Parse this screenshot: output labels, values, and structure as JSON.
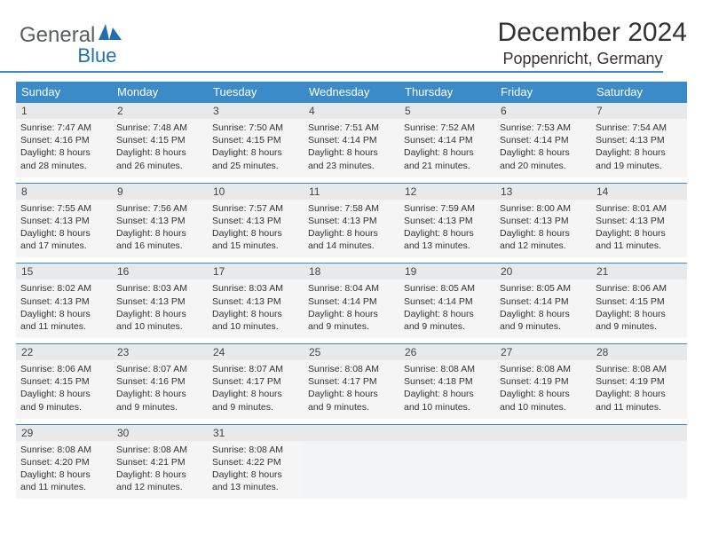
{
  "logo": {
    "text1": "General",
    "text2": "Blue"
  },
  "title": "December 2024",
  "location": "Poppenricht, Germany",
  "colors": {
    "header_bg": "#3b8bc9",
    "header_text": "#ffffff",
    "daynum_bg": "#e8e9ea",
    "cell_bg": "#f5f5f5",
    "border": "#3b8bc9",
    "logo_gray": "#5a5d60",
    "logo_blue": "#1f6fb2"
  },
  "weekdays": [
    "Sunday",
    "Monday",
    "Tuesday",
    "Wednesday",
    "Thursday",
    "Friday",
    "Saturday"
  ],
  "weeks": [
    {
      "days": [
        {
          "num": "1",
          "sunrise": "Sunrise: 7:47 AM",
          "sunset": "Sunset: 4:16 PM",
          "daylight": "Daylight: 8 hours and 28 minutes."
        },
        {
          "num": "2",
          "sunrise": "Sunrise: 7:48 AM",
          "sunset": "Sunset: 4:15 PM",
          "daylight": "Daylight: 8 hours and 26 minutes."
        },
        {
          "num": "3",
          "sunrise": "Sunrise: 7:50 AM",
          "sunset": "Sunset: 4:15 PM",
          "daylight": "Daylight: 8 hours and 25 minutes."
        },
        {
          "num": "4",
          "sunrise": "Sunrise: 7:51 AM",
          "sunset": "Sunset: 4:14 PM",
          "daylight": "Daylight: 8 hours and 23 minutes."
        },
        {
          "num": "5",
          "sunrise": "Sunrise: 7:52 AM",
          "sunset": "Sunset: 4:14 PM",
          "daylight": "Daylight: 8 hours and 21 minutes."
        },
        {
          "num": "6",
          "sunrise": "Sunrise: 7:53 AM",
          "sunset": "Sunset: 4:14 PM",
          "daylight": "Daylight: 8 hours and 20 minutes."
        },
        {
          "num": "7",
          "sunrise": "Sunrise: 7:54 AM",
          "sunset": "Sunset: 4:13 PM",
          "daylight": "Daylight: 8 hours and 19 minutes."
        }
      ]
    },
    {
      "days": [
        {
          "num": "8",
          "sunrise": "Sunrise: 7:55 AM",
          "sunset": "Sunset: 4:13 PM",
          "daylight": "Daylight: 8 hours and 17 minutes."
        },
        {
          "num": "9",
          "sunrise": "Sunrise: 7:56 AM",
          "sunset": "Sunset: 4:13 PM",
          "daylight": "Daylight: 8 hours and 16 minutes."
        },
        {
          "num": "10",
          "sunrise": "Sunrise: 7:57 AM",
          "sunset": "Sunset: 4:13 PM",
          "daylight": "Daylight: 8 hours and 15 minutes."
        },
        {
          "num": "11",
          "sunrise": "Sunrise: 7:58 AM",
          "sunset": "Sunset: 4:13 PM",
          "daylight": "Daylight: 8 hours and 14 minutes."
        },
        {
          "num": "12",
          "sunrise": "Sunrise: 7:59 AM",
          "sunset": "Sunset: 4:13 PM",
          "daylight": "Daylight: 8 hours and 13 minutes."
        },
        {
          "num": "13",
          "sunrise": "Sunrise: 8:00 AM",
          "sunset": "Sunset: 4:13 PM",
          "daylight": "Daylight: 8 hours and 12 minutes."
        },
        {
          "num": "14",
          "sunrise": "Sunrise: 8:01 AM",
          "sunset": "Sunset: 4:13 PM",
          "daylight": "Daylight: 8 hours and 11 minutes."
        }
      ]
    },
    {
      "days": [
        {
          "num": "15",
          "sunrise": "Sunrise: 8:02 AM",
          "sunset": "Sunset: 4:13 PM",
          "daylight": "Daylight: 8 hours and 11 minutes."
        },
        {
          "num": "16",
          "sunrise": "Sunrise: 8:03 AM",
          "sunset": "Sunset: 4:13 PM",
          "daylight": "Daylight: 8 hours and 10 minutes."
        },
        {
          "num": "17",
          "sunrise": "Sunrise: 8:03 AM",
          "sunset": "Sunset: 4:13 PM",
          "daylight": "Daylight: 8 hours and 10 minutes."
        },
        {
          "num": "18",
          "sunrise": "Sunrise: 8:04 AM",
          "sunset": "Sunset: 4:14 PM",
          "daylight": "Daylight: 8 hours and 9 minutes."
        },
        {
          "num": "19",
          "sunrise": "Sunrise: 8:05 AM",
          "sunset": "Sunset: 4:14 PM",
          "daylight": "Daylight: 8 hours and 9 minutes."
        },
        {
          "num": "20",
          "sunrise": "Sunrise: 8:05 AM",
          "sunset": "Sunset: 4:14 PM",
          "daylight": "Daylight: 8 hours and 9 minutes."
        },
        {
          "num": "21",
          "sunrise": "Sunrise: 8:06 AM",
          "sunset": "Sunset: 4:15 PM",
          "daylight": "Daylight: 8 hours and 9 minutes."
        }
      ]
    },
    {
      "days": [
        {
          "num": "22",
          "sunrise": "Sunrise: 8:06 AM",
          "sunset": "Sunset: 4:15 PM",
          "daylight": "Daylight: 8 hours and 9 minutes."
        },
        {
          "num": "23",
          "sunrise": "Sunrise: 8:07 AM",
          "sunset": "Sunset: 4:16 PM",
          "daylight": "Daylight: 8 hours and 9 minutes."
        },
        {
          "num": "24",
          "sunrise": "Sunrise: 8:07 AM",
          "sunset": "Sunset: 4:17 PM",
          "daylight": "Daylight: 8 hours and 9 minutes."
        },
        {
          "num": "25",
          "sunrise": "Sunrise: 8:08 AM",
          "sunset": "Sunset: 4:17 PM",
          "daylight": "Daylight: 8 hours and 9 minutes."
        },
        {
          "num": "26",
          "sunrise": "Sunrise: 8:08 AM",
          "sunset": "Sunset: 4:18 PM",
          "daylight": "Daylight: 8 hours and 10 minutes."
        },
        {
          "num": "27",
          "sunrise": "Sunrise: 8:08 AM",
          "sunset": "Sunset: 4:19 PM",
          "daylight": "Daylight: 8 hours and 10 minutes."
        },
        {
          "num": "28",
          "sunrise": "Sunrise: 8:08 AM",
          "sunset": "Sunset: 4:19 PM",
          "daylight": "Daylight: 8 hours and 11 minutes."
        }
      ]
    },
    {
      "days": [
        {
          "num": "29",
          "sunrise": "Sunrise: 8:08 AM",
          "sunset": "Sunset: 4:20 PM",
          "daylight": "Daylight: 8 hours and 11 minutes."
        },
        {
          "num": "30",
          "sunrise": "Sunrise: 8:08 AM",
          "sunset": "Sunset: 4:21 PM",
          "daylight": "Daylight: 8 hours and 12 minutes."
        },
        {
          "num": "31",
          "sunrise": "Sunrise: 8:08 AM",
          "sunset": "Sunset: 4:22 PM",
          "daylight": "Daylight: 8 hours and 13 minutes."
        },
        {
          "empty": true
        },
        {
          "empty": true
        },
        {
          "empty": true
        },
        {
          "empty": true
        }
      ]
    }
  ]
}
